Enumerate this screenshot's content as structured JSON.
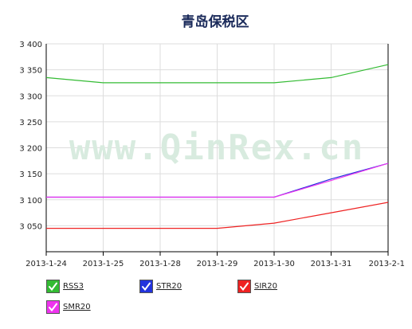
{
  "chart_data": {
    "type": "line",
    "title": "青岛保税区",
    "watermark": "www.QinRex.cn",
    "categories": [
      "2013-1-24",
      "2013-1-25",
      "2013-1-28",
      "2013-1-29",
      "2013-1-30",
      "2013-1-31",
      "2013-2-1"
    ],
    "y_ticks": [
      "3 050",
      "3 100",
      "3 150",
      "3 200",
      "3 250",
      "3 300",
      "3 350",
      "3 400"
    ],
    "ylim": [
      3000,
      3400
    ],
    "grid": true,
    "legend_position": "bottom",
    "series": [
      {
        "name": "RSS3",
        "color": "#33bb33",
        "values": [
          3335,
          3325,
          3325,
          3325,
          3325,
          3335,
          3360
        ]
      },
      {
        "name": "STR20",
        "color": "#2233dd",
        "values": [
          3105,
          3105,
          3105,
          3105,
          3105,
          3140,
          3170
        ]
      },
      {
        "name": "SIR20",
        "color": "#ee2222",
        "values": [
          3045,
          3045,
          3045,
          3045,
          3055,
          3075,
          3095
        ]
      },
      {
        "name": "SMR20",
        "color": "#ee33ee",
        "values": [
          3105,
          3105,
          3105,
          3105,
          3105,
          3137,
          3170
        ]
      }
    ]
  }
}
